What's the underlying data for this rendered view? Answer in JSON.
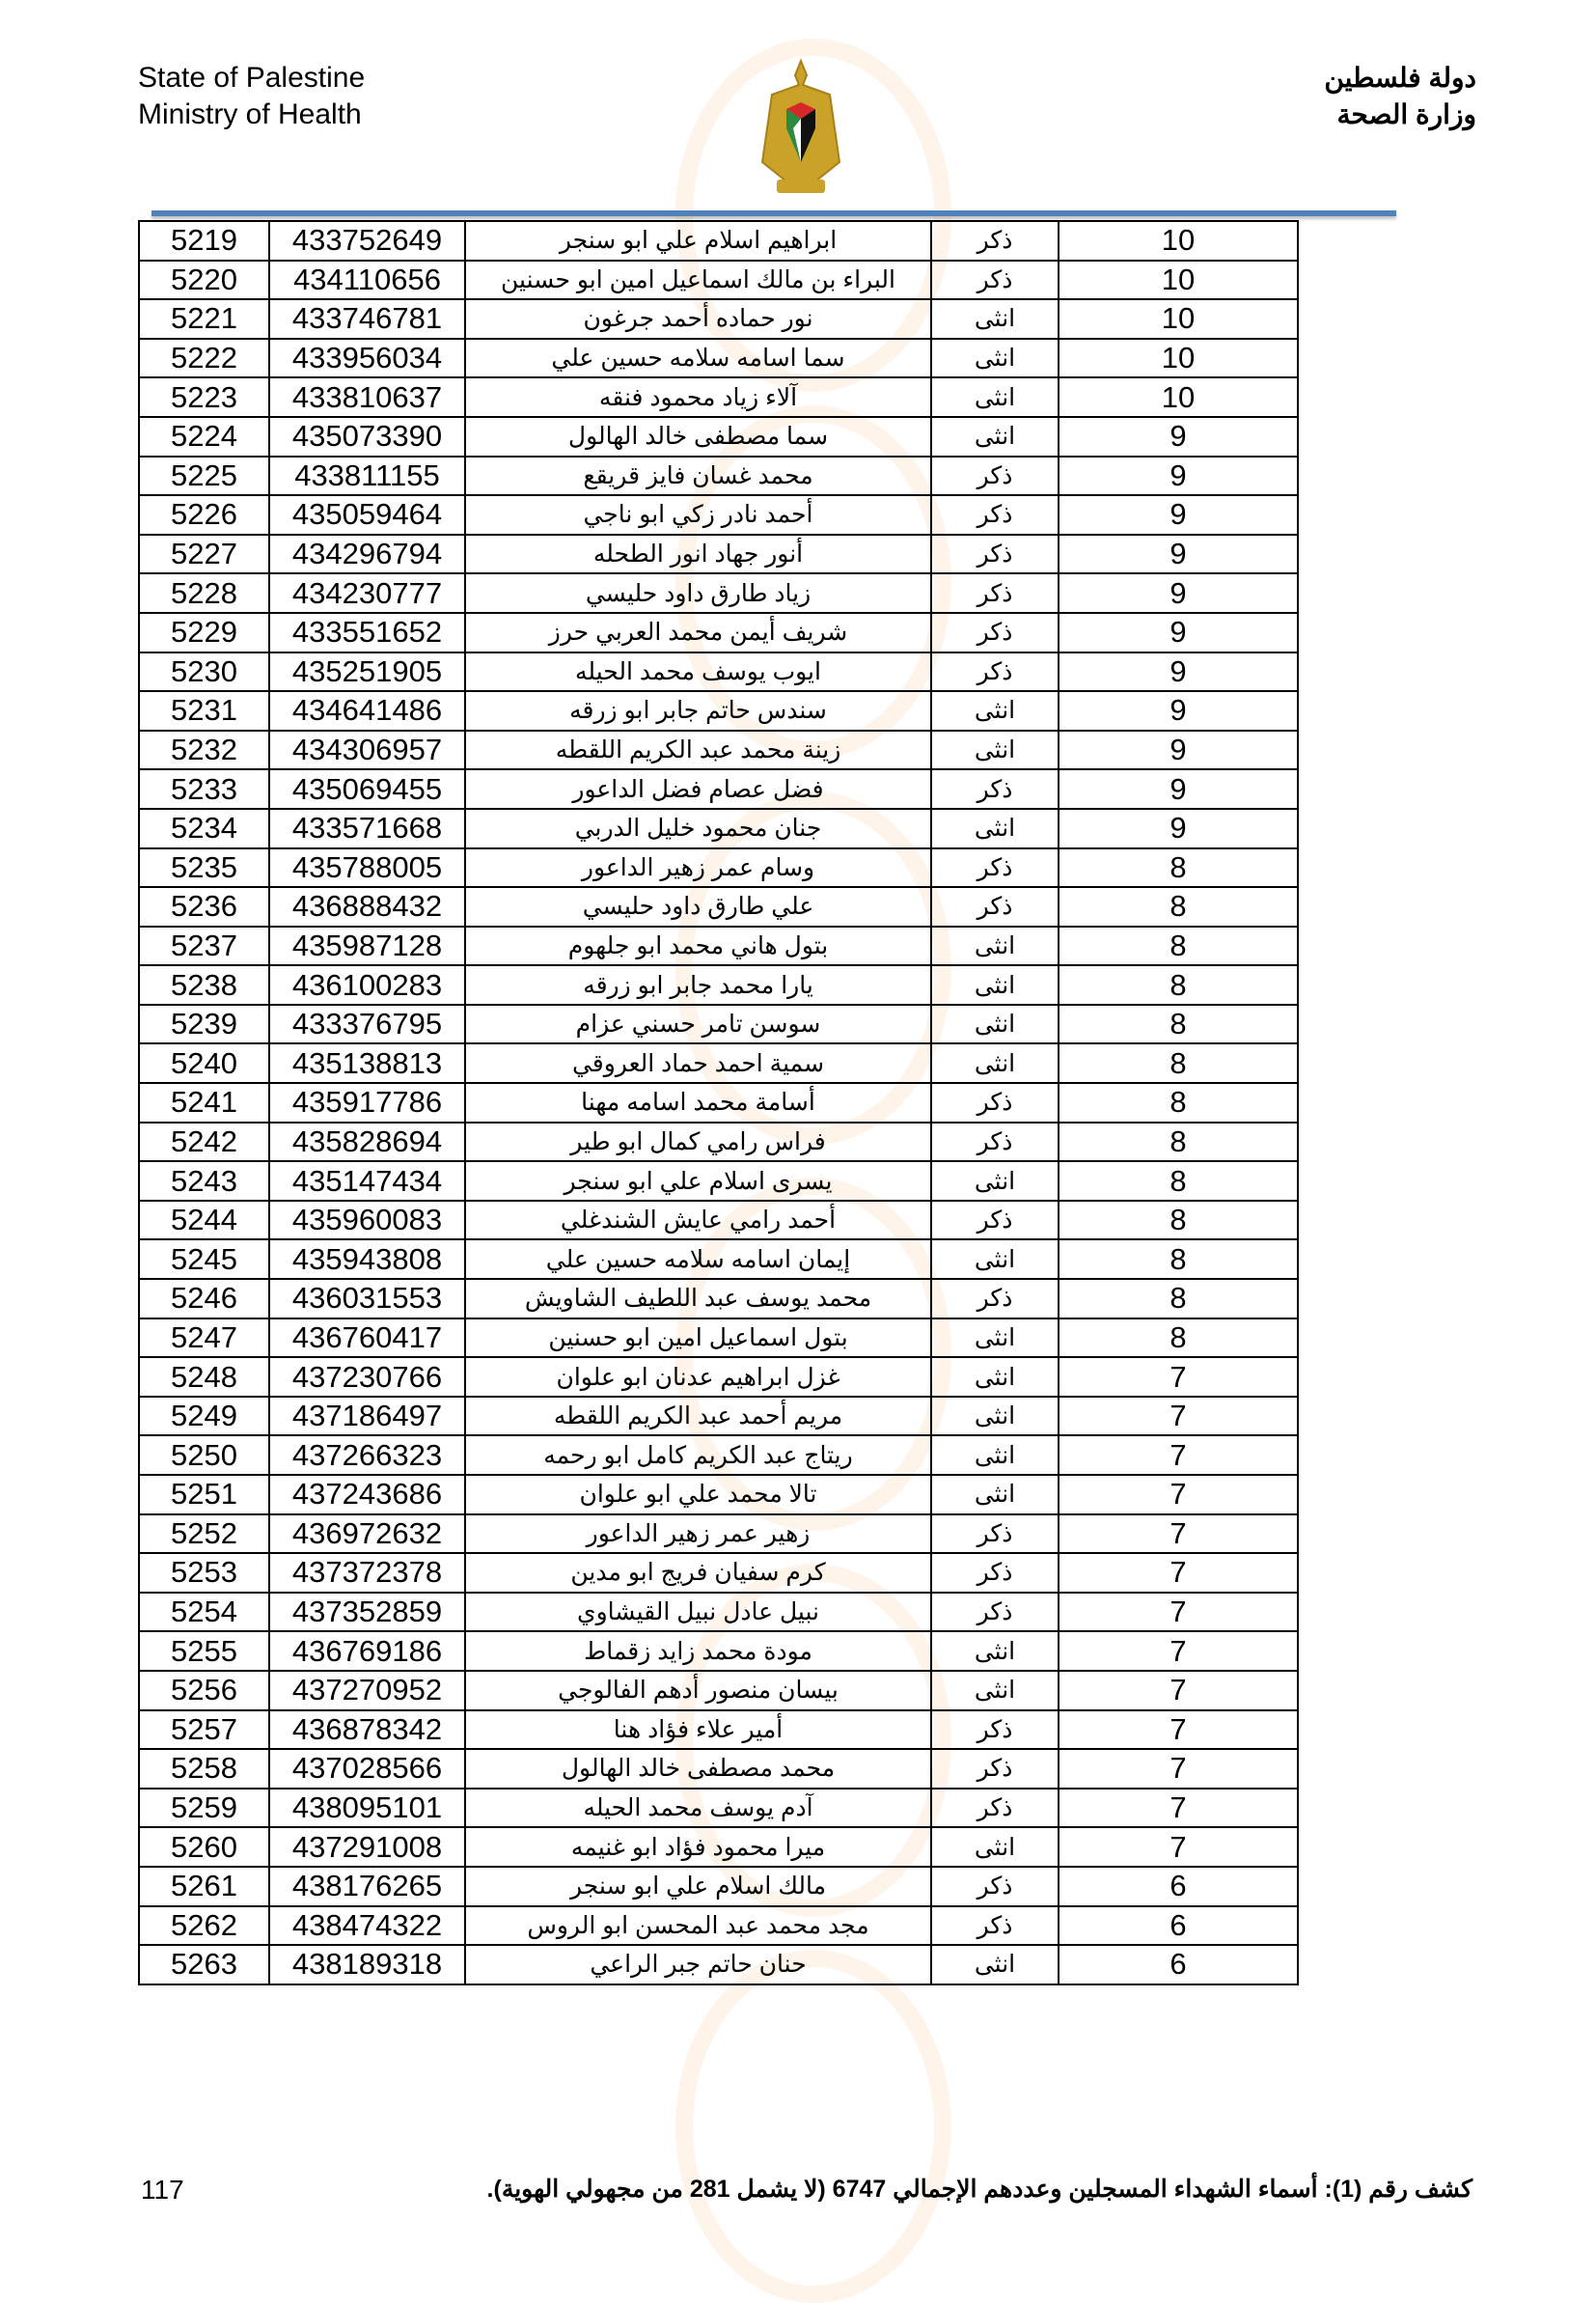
{
  "header": {
    "english_line1": "State of Palestine",
    "english_line2": "Ministry of Health",
    "arabic_line1": "دولة فلسطين",
    "arabic_line2": "وزارة الصحة",
    "emblem": "palestine-eagle-emblem"
  },
  "colors": {
    "rule": "#4f81bd"
  },
  "table": {
    "rows": [
      [
        "5219",
        "433752649",
        "ابراهيم اسلام علي ابو سنجر",
        "ذكر",
        "10"
      ],
      [
        "5220",
        "434110656",
        "البراء بن مالك اسماعيل امين ابو حسنين",
        "ذكر",
        "10"
      ],
      [
        "5221",
        "433746781",
        "نور حماده أحمد جرغون",
        "انثى",
        "10"
      ],
      [
        "5222",
        "433956034",
        "سما اسامه سلامه حسين علي",
        "انثى",
        "10"
      ],
      [
        "5223",
        "433810637",
        "آلاء زياد محمود فنقه",
        "انثى",
        "10"
      ],
      [
        "5224",
        "435073390",
        "سما مصطفى خالد الهالول",
        "انثى",
        "9"
      ],
      [
        "5225",
        "433811155",
        "محمد غسان فايز قريقع",
        "ذكر",
        "9"
      ],
      [
        "5226",
        "435059464",
        "أحمد نادر زكي ابو ناجي",
        "ذكر",
        "9"
      ],
      [
        "5227",
        "434296794",
        "أنور جهاد انور الطحله",
        "ذكر",
        "9"
      ],
      [
        "5228",
        "434230777",
        "زياد طارق داود حليسي",
        "ذكر",
        "9"
      ],
      [
        "5229",
        "433551652",
        "شريف أيمن محمد العربي حرز",
        "ذكر",
        "9"
      ],
      [
        "5230",
        "435251905",
        "ايوب يوسف محمد الحيله",
        "ذكر",
        "9"
      ],
      [
        "5231",
        "434641486",
        "سندس حاتم جابر ابو زرقه",
        "انثى",
        "9"
      ],
      [
        "5232",
        "434306957",
        "زينة محمد عبد الكريم اللقطه",
        "انثى",
        "9"
      ],
      [
        "5233",
        "435069455",
        "فضل عصام فضل الداعور",
        "ذكر",
        "9"
      ],
      [
        "5234",
        "433571668",
        "جنان محمود خليل الدربي",
        "انثى",
        "9"
      ],
      [
        "5235",
        "435788005",
        "وسام عمر زهير الداعور",
        "ذكر",
        "8"
      ],
      [
        "5236",
        "436888432",
        "علي طارق داود حليسي",
        "ذكر",
        "8"
      ],
      [
        "5237",
        "435987128",
        "بتول هاني محمد ابو جلهوم",
        "انثى",
        "8"
      ],
      [
        "5238",
        "436100283",
        "يارا محمد جابر ابو زرقه",
        "انثى",
        "8"
      ],
      [
        "5239",
        "433376795",
        "سوسن تامر حسني عزام",
        "انثى",
        "8"
      ],
      [
        "5240",
        "435138813",
        "سمية احمد حماد العروقي",
        "انثى",
        "8"
      ],
      [
        "5241",
        "435917786",
        "أسامة محمد اسامه مهنا",
        "ذكر",
        "8"
      ],
      [
        "5242",
        "435828694",
        "فراس رامي كمال ابو طير",
        "ذكر",
        "8"
      ],
      [
        "5243",
        "435147434",
        "يسرى اسلام علي ابو سنجر",
        "انثى",
        "8"
      ],
      [
        "5244",
        "435960083",
        "أحمد رامي عايش الشندغلي",
        "ذكر",
        "8"
      ],
      [
        "5245",
        "435943808",
        "إيمان اسامه سلامه حسين علي",
        "انثى",
        "8"
      ],
      [
        "5246",
        "436031553",
        "محمد يوسف عبد اللطيف الشاويش",
        "ذكر",
        "8"
      ],
      [
        "5247",
        "436760417",
        "بتول اسماعيل امين ابو حسنين",
        "انثى",
        "8"
      ],
      [
        "5248",
        "437230766",
        "غزل ابراهيم عدنان ابو علوان",
        "انثى",
        "7"
      ],
      [
        "5249",
        "437186497",
        "مريم أحمد عبد الكريم اللقطه",
        "انثى",
        "7"
      ],
      [
        "5250",
        "437266323",
        "ريتاج عبد الكريم كامل ابو رحمه",
        "انثى",
        "7"
      ],
      [
        "5251",
        "437243686",
        "تالا محمد علي ابو علوان",
        "انثى",
        "7"
      ],
      [
        "5252",
        "436972632",
        "زهير عمر زهير الداعور",
        "ذكر",
        "7"
      ],
      [
        "5253",
        "437372378",
        "كرم سفيان فريج ابو مدين",
        "ذكر",
        "7"
      ],
      [
        "5254",
        "437352859",
        "نبيل عادل نبيل القيشاوي",
        "ذكر",
        "7"
      ],
      [
        "5255",
        "436769186",
        "مودة محمد زايد زقماط",
        "انثى",
        "7"
      ],
      [
        "5256",
        "437270952",
        "بيسان منصور أدهم الفالوجي",
        "انثى",
        "7"
      ],
      [
        "5257",
        "436878342",
        "أمير علاء فؤاد هنا",
        "ذكر",
        "7"
      ],
      [
        "5258",
        "437028566",
        "محمد مصطفى خالد الهالول",
        "ذكر",
        "7"
      ],
      [
        "5259",
        "438095101",
        "آدم يوسف محمد الحيله",
        "ذكر",
        "7"
      ],
      [
        "5260",
        "437291008",
        "ميرا محمود فؤاد ابو غنيمه",
        "انثى",
        "7"
      ],
      [
        "5261",
        "438176265",
        "مالك اسلام علي ابو سنجر",
        "ذكر",
        "6"
      ],
      [
        "5262",
        "438474322",
        "مجد محمد عبد المحسن ابو الروس",
        "ذكر",
        "6"
      ],
      [
        "5263",
        "438189318",
        "حنان حاتم جبر الراعي",
        "انثى",
        "6"
      ]
    ]
  },
  "footer": {
    "note": "كشف رقم (1): أسماء الشهداء المسجلين وعددهم الإجمالي 6747 (لا يشمل 281 من مجهولي الهوية).",
    "page_number": "117"
  }
}
